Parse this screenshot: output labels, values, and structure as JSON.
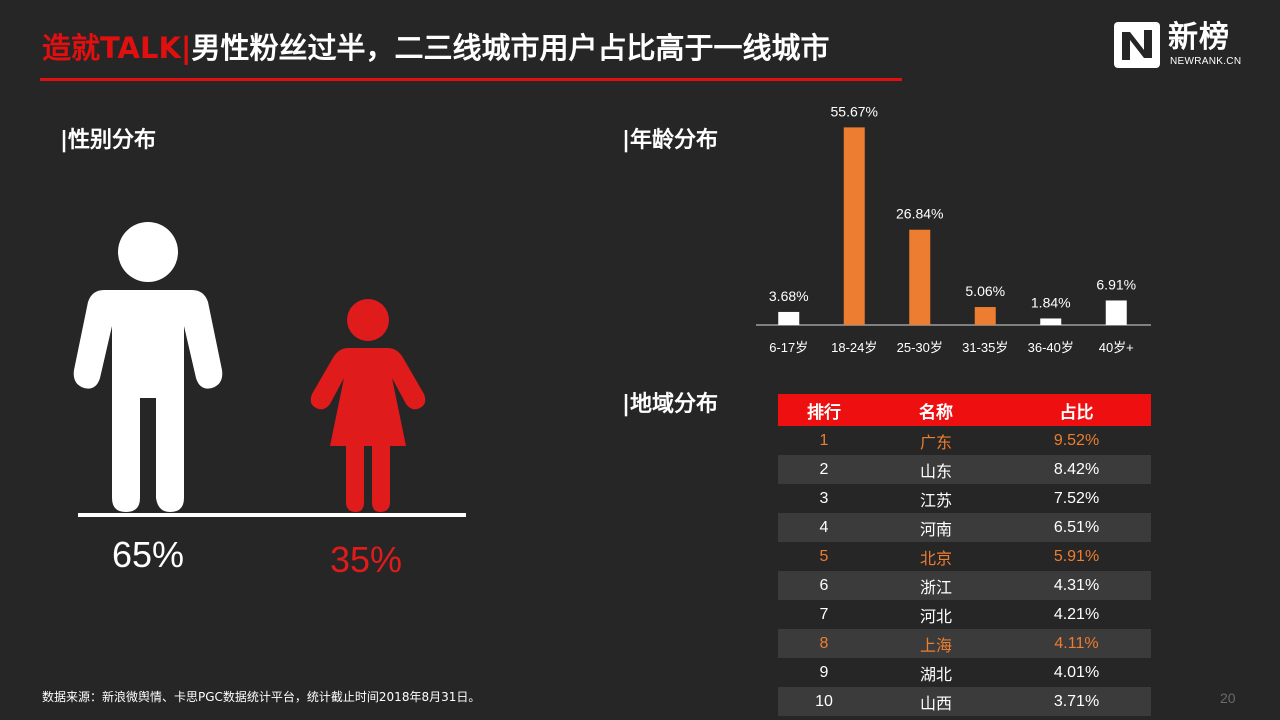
{
  "title": {
    "brand": "造就TALK|",
    "text": "男性粉丝过半，二三线城市用户占比高于一线城市"
  },
  "logo": {
    "cn": "新榜",
    "en": "NEWRANK.CN"
  },
  "gender": {
    "section_title": "|性别分布",
    "male_pct": "65%",
    "female_pct": "35%",
    "male_color": "#ffffff",
    "female_color": "#e01b1b"
  },
  "age": {
    "section_title": "|年龄分布"
  },
  "chart_data": {
    "type": "bar",
    "categories": [
      "6-17岁",
      "18-24岁",
      "25-30岁",
      "31-35岁",
      "36-40岁",
      "40岁+"
    ],
    "values": [
      3.68,
      55.67,
      26.84,
      5.06,
      1.84,
      6.91
    ],
    "labels": [
      "3.68%",
      "55.67%",
      "26.84%",
      "5.06%",
      "1.84%",
      "6.91%"
    ],
    "colors": [
      "#ffffff",
      "#ed7d31",
      "#ed7d31",
      "#ed7d31",
      "#ffffff",
      "#ffffff"
    ],
    "ylim": [
      0,
      60
    ],
    "grid": false,
    "legend": "none"
  },
  "region": {
    "section_title": "|地域分布",
    "headers": [
      "排行",
      "名称",
      "占比"
    ],
    "rows": [
      {
        "rank": "1",
        "name": "广东",
        "share": "9.52%",
        "highlight": true
      },
      {
        "rank": "2",
        "name": "山东",
        "share": "8.42%",
        "highlight": false
      },
      {
        "rank": "3",
        "name": "江苏",
        "share": "7.52%",
        "highlight": false
      },
      {
        "rank": "4",
        "name": "河南",
        "share": "6.51%",
        "highlight": false
      },
      {
        "rank": "5",
        "name": "北京",
        "share": "5.91%",
        "highlight": true
      },
      {
        "rank": "6",
        "name": "浙江",
        "share": "4.31%",
        "highlight": false
      },
      {
        "rank": "7",
        "name": "河北",
        "share": "4.21%",
        "highlight": false
      },
      {
        "rank": "8",
        "name": "上海",
        "share": "4.11%",
        "highlight": true
      },
      {
        "rank": "9",
        "name": "湖北",
        "share": "4.01%",
        "highlight": false
      },
      {
        "rank": "10",
        "name": "山西",
        "share": "3.71%",
        "highlight": false
      }
    ]
  },
  "footer": {
    "source": "数据来源：新浪微舆情、卡思PGC数据统计平台，统计截止时间2018年8月31日。",
    "page_number": "20"
  },
  "icons": {
    "male": "male-figure-icon",
    "female": "female-figure-icon",
    "logo": "newrank-logo-icon"
  }
}
